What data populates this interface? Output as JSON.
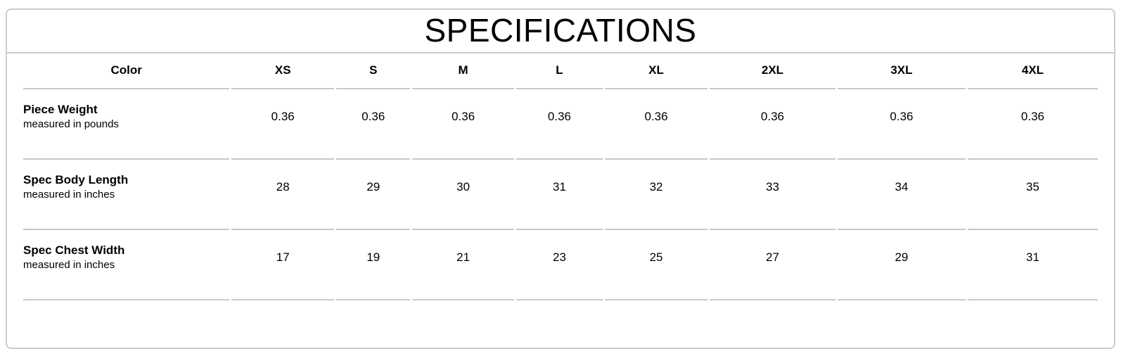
{
  "title": "SPECIFICATIONS",
  "table": {
    "columns": [
      "Color",
      "XS",
      "S",
      "M",
      "L",
      "XL",
      "2XL",
      "3XL",
      "4XL"
    ],
    "rows": [
      {
        "label": "Piece Weight",
        "note": "measured in pounds",
        "values": [
          "0.36",
          "0.36",
          "0.36",
          "0.36",
          "0.36",
          "0.36",
          "0.36",
          "0.36"
        ]
      },
      {
        "label": "Spec Body Length",
        "note": "measured in inches",
        "values": [
          "28",
          "29",
          "30",
          "31",
          "32",
          "33",
          "34",
          "35"
        ]
      },
      {
        "label": "Spec Chest Width",
        "note": "measured in inches",
        "values": [
          "17",
          "19",
          "21",
          "23",
          "25",
          "27",
          "29",
          "31"
        ]
      }
    ]
  },
  "colors": {
    "card_border": "#cccccc",
    "divider": "#c8c8c8",
    "text": "#000000",
    "background": "#ffffff"
  }
}
